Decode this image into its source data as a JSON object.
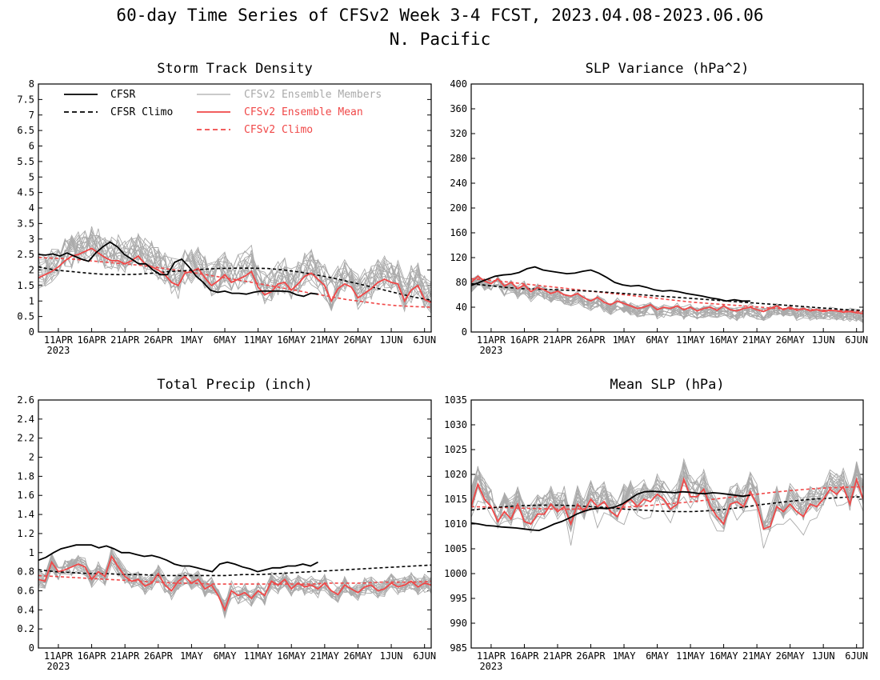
{
  "title_line1": "60-day Time Series of CFSv2 Week 3-4 FCST, 2023.04.08-2023.06.06",
  "title_line2": "N. Pacific",
  "colors": {
    "cfsr": "#000000",
    "cfsr_climo": "#000000",
    "members": "#aaaaaa",
    "ensemble_mean": "#f04848",
    "cfsv2_climo": "#f04848"
  },
  "legend": [
    {
      "key": "cfsr",
      "label": "CFSR",
      "style": "solid"
    },
    {
      "key": "cfsr_climo",
      "label": "CFSR Climo",
      "style": "dashed"
    },
    {
      "key": "members",
      "label": "CFSv2 Ensemble Members",
      "style": "solid"
    },
    {
      "key": "ensemble_mean",
      "label": "CFSv2 Ensemble Mean",
      "style": "solid"
    },
    {
      "key": "cfsv2_climo",
      "label": "CFSv2 Climo",
      "style": "dashed"
    }
  ],
  "x_ticks": [
    "11APR",
    "16APR",
    "21APR",
    "26APR",
    "1MAY",
    "6MAY",
    "11MAY",
    "16MAY",
    "21MAY",
    "26MAY",
    "1JUN",
    "6JUN"
  ],
  "x_year": "2023",
  "chart_data": [
    {
      "type": "line",
      "title": "Storm Track Density",
      "x_start": "2023-04-08",
      "ylim": [
        0,
        8
      ],
      "y_ticks": [
        0,
        0.5,
        1,
        1.5,
        2,
        2.5,
        3,
        3.5,
        4,
        4.5,
        5,
        5.5,
        6,
        6.5,
        7,
        7.5,
        8
      ],
      "legend_location": "top-left",
      "series": [
        {
          "key": "cfsr",
          "name": "CFSR",
          "values": [
            2.5,
            2.48,
            2.52,
            2.45,
            2.55,
            2.45,
            2.35,
            2.28,
            2.55,
            2.75,
            2.9,
            2.75,
            2.5,
            2.35,
            2.2,
            2.2,
            2.0,
            1.85,
            1.85,
            2.25,
            2.35,
            2.1,
            1.8,
            1.6,
            1.35,
            1.28,
            1.32,
            1.25,
            1.25,
            1.22,
            1.28,
            1.32,
            1.32,
            1.32,
            1.32,
            1.3,
            1.2,
            1.15,
            1.25,
            1.22
          ]
        },
        {
          "key": "cfsr_climo",
          "name": "CFSR Climo",
          "values": [
            2.1,
            2.0,
            1.95,
            1.9,
            1.86,
            1.85,
            1.86,
            1.9,
            1.95,
            1.98,
            2.02,
            2.05,
            2.06,
            2.06,
            2.05,
            2.0,
            1.93,
            1.84,
            1.74,
            1.62,
            1.5,
            1.37,
            1.24,
            1.12,
            1.03
          ]
        },
        {
          "key": "ensemble_mean",
          "name": "CFSv2 Ensemble Mean",
          "values": [
            1.75,
            1.85,
            1.95,
            2.1,
            2.3,
            2.45,
            2.5,
            2.6,
            2.7,
            2.55,
            2.4,
            2.3,
            2.3,
            2.2,
            2.3,
            2.45,
            2.2,
            2.1,
            2.0,
            1.85,
            1.6,
            1.5,
            1.9,
            1.95,
            2.05,
            1.75,
            1.5,
            1.65,
            1.85,
            1.6,
            1.7,
            1.8,
            1.95,
            1.45,
            1.2,
            1.3,
            1.55,
            1.6,
            1.35,
            1.55,
            1.8,
            1.9,
            1.7,
            1.5,
            1.0,
            1.4,
            1.55,
            1.45,
            1.1,
            1.25,
            1.4,
            1.6,
            1.7,
            1.6,
            1.55,
            1.0,
            1.35,
            1.5,
            1.05,
            0.95
          ]
        },
        {
          "key": "cfsv2_climo",
          "name": "CFSv2 Climo",
          "values": [
            2.4,
            2.38,
            2.35,
            2.3,
            2.25,
            2.2,
            2.15,
            2.08,
            2.0,
            1.92,
            1.83,
            1.74,
            1.65,
            1.55,
            1.45,
            1.35,
            1.25,
            1.15,
            1.05,
            0.98,
            0.9,
            0.85,
            0.82,
            0.8
          ]
        }
      ]
    },
    {
      "type": "line",
      "title": "SLP Variance (hPa^2)",
      "x_start": "2023-04-08",
      "ylim": [
        0,
        400
      ],
      "y_ticks": [
        0,
        40,
        80,
        120,
        160,
        200,
        240,
        280,
        320,
        360,
        400
      ],
      "series": [
        {
          "key": "cfsr",
          "name": "CFSR",
          "values": [
            75,
            80,
            85,
            90,
            92,
            93,
            96,
            102,
            105,
            100,
            98,
            96,
            94,
            95,
            98,
            100,
            95,
            88,
            80,
            76,
            74,
            75,
            72,
            68,
            66,
            67,
            65,
            62,
            60,
            58,
            55,
            53,
            50,
            52,
            50,
            50
          ]
        },
        {
          "key": "cfsr_climo",
          "name": "CFSR Climo",
          "values": [
            78,
            75,
            72,
            70,
            69,
            68,
            67,
            66,
            64,
            62,
            60,
            58,
            56,
            54,
            52,
            50,
            48,
            46,
            44,
            42,
            40,
            38,
            36,
            35
          ]
        },
        {
          "key": "ensemble_mean",
          "name": "CFSv2 Ensemble Mean",
          "values": [
            80,
            90,
            82,
            78,
            86,
            74,
            80,
            70,
            76,
            65,
            72,
            68,
            62,
            66,
            60,
            58,
            62,
            55,
            50,
            56,
            48,
            44,
            50,
            46,
            42,
            38,
            40,
            44,
            36,
            40,
            38,
            42,
            36,
            40,
            34,
            38,
            40,
            35,
            42,
            36,
            34,
            38,
            40,
            36,
            33,
            38,
            42,
            36,
            40,
            35,
            38,
            34,
            36,
            33,
            35,
            34,
            32,
            33,
            31,
            30
          ]
        },
        {
          "key": "cfsv2_climo",
          "name": "CFSv2 Climo",
          "values": [
            86,
            84,
            81,
            78,
            75,
            72,
            69,
            66,
            63,
            60,
            57,
            54,
            51,
            48,
            46,
            44,
            42,
            40,
            38,
            37,
            36,
            35,
            34,
            33
          ]
        }
      ]
    },
    {
      "type": "line",
      "title": "Total Precip (inch)",
      "x_start": "2023-04-08",
      "ylim": [
        0,
        2.6
      ],
      "y_ticks": [
        0,
        0.2,
        0.4,
        0.6,
        0.8,
        1,
        1.2,
        1.4,
        1.6,
        1.8,
        2,
        2.2,
        2.4,
        2.6
      ],
      "series": [
        {
          "key": "cfsr",
          "name": "CFSR",
          "values": [
            0.92,
            0.95,
            1.0,
            1.04,
            1.06,
            1.08,
            1.08,
            1.08,
            1.05,
            1.07,
            1.04,
            1.0,
            1.0,
            0.98,
            0.96,
            0.97,
            0.95,
            0.92,
            0.88,
            0.86,
            0.86,
            0.84,
            0.82,
            0.8,
            0.88,
            0.9,
            0.88,
            0.85,
            0.83,
            0.8,
            0.82,
            0.84,
            0.84,
            0.86,
            0.86,
            0.88,
            0.86,
            0.9
          ]
        },
        {
          "key": "cfsr_climo",
          "name": "CFSR Climo",
          "values": [
            0.82,
            0.8,
            0.79,
            0.78,
            0.78,
            0.77,
            0.77,
            0.76,
            0.76,
            0.76,
            0.76,
            0.76,
            0.77,
            0.77,
            0.78,
            0.79,
            0.8,
            0.81,
            0.82,
            0.83,
            0.84,
            0.85,
            0.86,
            0.87
          ]
        },
        {
          "key": "ensemble_mean",
          "name": "CFSv2 Ensemble Mean",
          "values": [
            0.72,
            0.7,
            0.9,
            0.8,
            0.82,
            0.85,
            0.88,
            0.85,
            0.72,
            0.8,
            0.75,
            0.96,
            0.85,
            0.75,
            0.7,
            0.72,
            0.65,
            0.68,
            0.78,
            0.66,
            0.6,
            0.7,
            0.75,
            0.68,
            0.72,
            0.62,
            0.66,
            0.55,
            0.4,
            0.6,
            0.55,
            0.58,
            0.52,
            0.6,
            0.55,
            0.7,
            0.66,
            0.72,
            0.62,
            0.68,
            0.64,
            0.66,
            0.62,
            0.68,
            0.6,
            0.56,
            0.66,
            0.62,
            0.58,
            0.64,
            0.66,
            0.6,
            0.62,
            0.68,
            0.64,
            0.66,
            0.7,
            0.64,
            0.68,
            0.66
          ]
        },
        {
          "key": "cfsv2_climo",
          "name": "CFSv2 Climo",
          "values": [
            0.76,
            0.75,
            0.74,
            0.73,
            0.72,
            0.71,
            0.7,
            0.69,
            0.68,
            0.68,
            0.67,
            0.67,
            0.67,
            0.67,
            0.67,
            0.67,
            0.67,
            0.68,
            0.68,
            0.68,
            0.69,
            0.69,
            0.69,
            0.7
          ]
        }
      ]
    },
    {
      "type": "line",
      "title": "Mean SLP (hPa)",
      "x_start": "2023-04-08",
      "ylim": [
        985,
        1035
      ],
      "y_ticks": [
        985,
        990,
        995,
        1000,
        1005,
        1010,
        1015,
        1020,
        1025,
        1030,
        1035
      ],
      "series": [
        {
          "key": "cfsr",
          "name": "CFSR",
          "values": [
            1010.2,
            1010,
            1009.7,
            1009.6,
            1009.4,
            1009.3,
            1009.2,
            1009,
            1008.8,
            1008.7,
            1009.3,
            1010,
            1010.5,
            1011.2,
            1012,
            1012.6,
            1013,
            1013.2,
            1013.1,
            1013.4,
            1014,
            1015,
            1016,
            1016.5,
            1016.6,
            1016.5,
            1016.4,
            1016.3,
            1016.5,
            1016.4,
            1016.2,
            1016.1,
            1016.3,
            1016.2,
            1016,
            1015.8,
            1015.6,
            1015.8
          ]
        },
        {
          "key": "cfsr_climo",
          "name": "CFSR Climo",
          "values": [
            1012.8,
            1013.2,
            1013.5,
            1013.7,
            1013.8,
            1013.8,
            1013.7,
            1013.5,
            1013.3,
            1013,
            1012.8,
            1012.6,
            1012.5,
            1012.5,
            1012.7,
            1013,
            1013.4,
            1013.9,
            1014.3,
            1014.7,
            1015,
            1015.2,
            1015.4,
            1015.5
          ]
        },
        {
          "key": "ensemble_mean",
          "name": "CFSv2 Ensemble Mean",
          "values": [
            1013.5,
            1018,
            1015,
            1013.5,
            1010.5,
            1012.5,
            1011,
            1014,
            1010.5,
            1010,
            1012,
            1012,
            1014,
            1012.5,
            1013.5,
            1010,
            1014,
            1012.5,
            1015,
            1013.5,
            1014.5,
            1012.5,
            1011.5,
            1014,
            1015,
            1013.5,
            1015,
            1014.5,
            1016,
            1015,
            1013,
            1014,
            1019,
            1015.5,
            1015.5,
            1017,
            1013.5,
            1011.5,
            1010,
            1014,
            1014.5,
            1013.5,
            1016.5,
            1014,
            1009,
            1009.5,
            1013.5,
            1012.5,
            1014,
            1012.5,
            1011.5,
            1014,
            1013.5,
            1015,
            1017,
            1016,
            1017.5,
            1014,
            1019,
            1015
          ]
        },
        {
          "key": "cfsv2_climo",
          "name": "CFSv2 Climo",
          "values": [
            1013.5,
            1013.4,
            1013.3,
            1013.2,
            1013.1,
            1013,
            1013,
            1013.1,
            1013.2,
            1013.4,
            1013.6,
            1013.9,
            1014.2,
            1014.5,
            1014.9,
            1015.3,
            1015.7,
            1016.1,
            1016.5,
            1016.8,
            1017.1,
            1017.3,
            1017.4,
            1017.5
          ]
        }
      ]
    }
  ]
}
